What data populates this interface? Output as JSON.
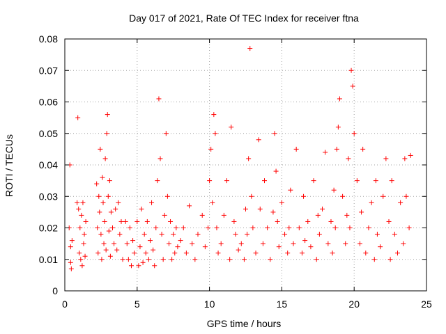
{
  "chart_data": {
    "type": "scatter",
    "title": "Day 017 of 2021, Rate Of TEC Index for receiver ftna",
    "xlabel": "GPS time / hours",
    "ylabel": "ROTI / TECUs",
    "xlim": [
      0,
      25
    ],
    "ylim": [
      0,
      0.08
    ],
    "xticks": [
      0,
      5,
      10,
      15,
      20,
      25
    ],
    "yticks": [
      0,
      0.01,
      0.02,
      0.03,
      0.04,
      0.05,
      0.06,
      0.07,
      0.08
    ],
    "xtick_labels": [
      "0",
      "5",
      "10",
      "15",
      "20",
      "25"
    ],
    "ytick_labels": [
      "0",
      "0.01",
      "0.02",
      "0.03",
      "0.04",
      "0.05",
      "0.06",
      "0.07",
      "0.08"
    ],
    "grid": true,
    "marker": "+",
    "color": "#ff0000",
    "x": [
      0.3,
      0.35,
      0.4,
      0.4,
      0.45,
      0.5,
      0.85,
      0.9,
      0.95,
      1.0,
      1.05,
      1.1,
      1.15,
      1.2,
      1.25,
      1.3,
      1.35,
      1.4,
      1.45,
      2.2,
      2.25,
      2.3,
      2.35,
      2.4,
      2.45,
      2.5,
      2.55,
      2.6,
      2.65,
      2.7,
      2.75,
      2.8,
      2.85,
      2.9,
      2.95,
      3.0,
      3.05,
      3.1,
      3.15,
      3.2,
      3.3,
      3.4,
      3.5,
      3.6,
      3.7,
      3.8,
      3.9,
      4.0,
      4.2,
      4.3,
      4.4,
      4.5,
      4.6,
      4.7,
      4.8,
      5.0,
      5.1,
      5.2,
      5.3,
      5.4,
      5.5,
      5.6,
      5.7,
      5.8,
      5.9,
      6.0,
      6.1,
      6.2,
      6.3,
      6.4,
      6.5,
      6.6,
      6.7,
      6.8,
      6.9,
      7.0,
      7.1,
      7.2,
      7.3,
      7.4,
      7.5,
      7.6,
      7.7,
      7.8,
      8.0,
      8.2,
      8.4,
      8.6,
      8.8,
      9.0,
      9.2,
      9.5,
      9.7,
      9.9,
      10.0,
      10.1,
      10.2,
      10.3,
      10.4,
      10.5,
      10.6,
      10.8,
      11.0,
      11.2,
      11.4,
      11.5,
      11.7,
      11.8,
      12.0,
      12.2,
      12.4,
      12.5,
      12.6,
      12.7,
      12.8,
      12.9,
      13.0,
      13.2,
      13.4,
      13.5,
      13.7,
      13.8,
      14.0,
      14.2,
      14.4,
      14.5,
      14.6,
      14.7,
      14.8,
      15.0,
      15.2,
      15.4,
      15.5,
      15.6,
      15.8,
      16.0,
      16.2,
      16.4,
      16.5,
      16.6,
      16.8,
      17.0,
      17.2,
      17.4,
      17.5,
      17.6,
      17.8,
      18.0,
      18.2,
      18.4,
      18.5,
      18.6,
      18.7,
      18.8,
      18.9,
      19.0,
      19.2,
      19.4,
      19.5,
      19.6,
      19.7,
      19.8,
      19.9,
      20.0,
      20.2,
      20.4,
      20.5,
      20.6,
      20.8,
      21.0,
      21.2,
      21.4,
      21.5,
      21.6,
      21.8,
      22.0,
      22.2,
      22.4,
      22.5,
      22.6,
      22.8,
      23.0,
      23.2,
      23.4,
      23.5,
      23.6,
      23.8,
      23.9
    ],
    "y": [
      0.02,
      0.04,
      0.014,
      0.009,
      0.007,
      0.016,
      0.028,
      0.055,
      0.026,
      0.012,
      0.02,
      0.01,
      0.024,
      0.008,
      0.028,
      0.015,
      0.018,
      0.011,
      0.022,
      0.034,
      0.02,
      0.012,
      0.03,
      0.025,
      0.045,
      0.018,
      0.01,
      0.036,
      0.028,
      0.015,
      0.022,
      0.042,
      0.013,
      0.05,
      0.056,
      0.03,
      0.019,
      0.035,
      0.011,
      0.025,
      0.02,
      0.015,
      0.026,
      0.013,
      0.028,
      0.018,
      0.022,
      0.01,
      0.022,
      0.015,
      0.01,
      0.02,
      0.008,
      0.016,
      0.012,
      0.022,
      0.008,
      0.014,
      0.026,
      0.009,
      0.018,
      0.012,
      0.022,
      0.01,
      0.016,
      0.028,
      0.013,
      0.008,
      0.02,
      0.035,
      0.061,
      0.042,
      0.018,
      0.01,
      0.024,
      0.05,
      0.03,
      0.015,
      0.022,
      0.01,
      0.018,
      0.012,
      0.02,
      0.014,
      0.016,
      0.02,
      0.012,
      0.027,
      0.015,
      0.01,
      0.018,
      0.024,
      0.014,
      0.02,
      0.035,
      0.045,
      0.028,
      0.056,
      0.05,
      0.02,
      0.012,
      0.015,
      0.024,
      0.035,
      0.01,
      0.052,
      0.022,
      0.018,
      0.013,
      0.015,
      0.01,
      0.026,
      0.018,
      0.042,
      0.077,
      0.03,
      0.02,
      0.012,
      0.048,
      0.026,
      0.015,
      0.035,
      0.02,
      0.01,
      0.025,
      0.05,
      0.038,
      0.022,
      0.014,
      0.028,
      0.018,
      0.012,
      0.02,
      0.032,
      0.015,
      0.045,
      0.02,
      0.012,
      0.03,
      0.016,
      0.022,
      0.014,
      0.035,
      0.01,
      0.024,
      0.018,
      0.026,
      0.044,
      0.015,
      0.022,
      0.012,
      0.032,
      0.02,
      0.045,
      0.052,
      0.061,
      0.03,
      0.015,
      0.024,
      0.042,
      0.02,
      0.07,
      0.065,
      0.05,
      0.035,
      0.015,
      0.025,
      0.045,
      0.012,
      0.02,
      0.028,
      0.01,
      0.035,
      0.018,
      0.014,
      0.03,
      0.042,
      0.022,
      0.01,
      0.035,
      0.018,
      0.012,
      0.028,
      0.015,
      0.042,
      0.03,
      0.02,
      0.043
    ]
  }
}
